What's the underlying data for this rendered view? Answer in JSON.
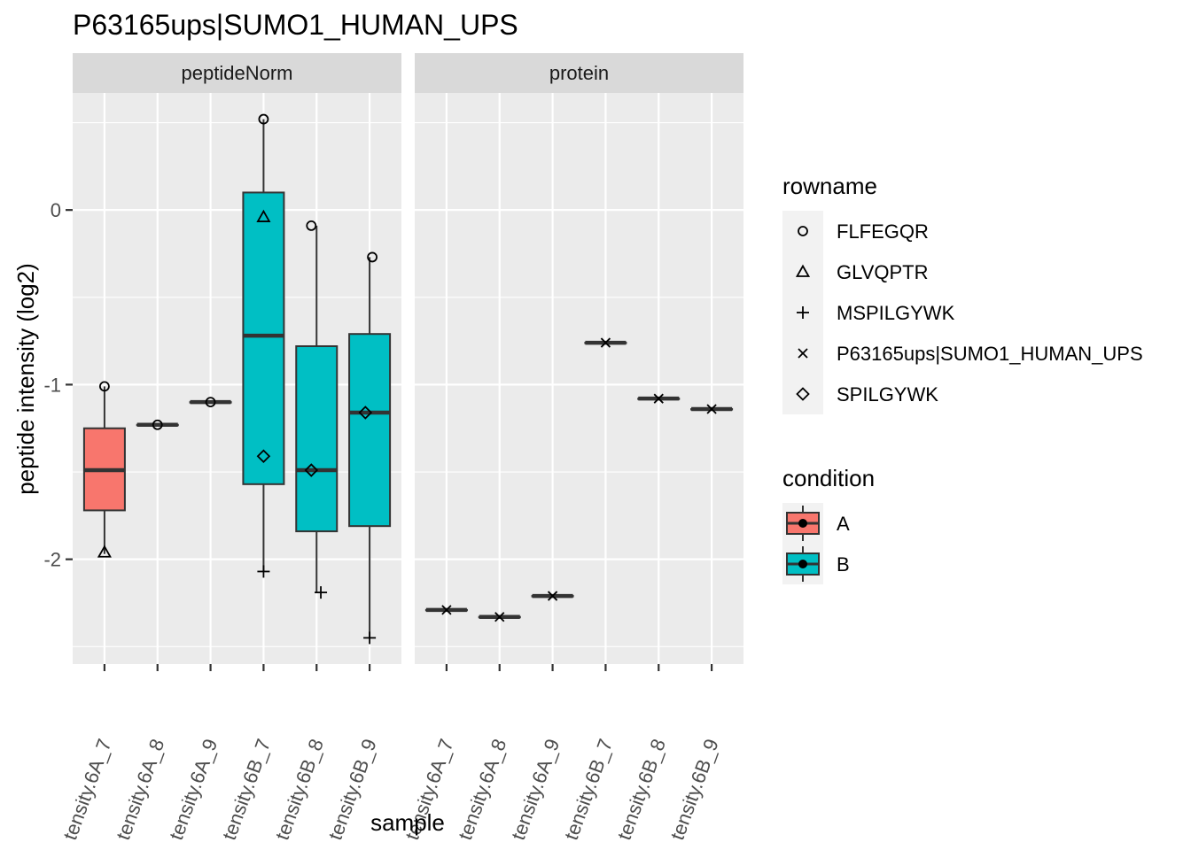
{
  "chart_data": {
    "type": "box",
    "title": "P63165ups|SUMO1_HUMAN_UPS",
    "xlabel": "sample",
    "ylabel": "peptide intensity (log2)",
    "ylim": [
      -2.6,
      0.67
    ],
    "yticks": [
      0,
      -1,
      -2
    ],
    "ytick_labels": [
      "0",
      "-1",
      "-2"
    ],
    "categories": [
      "tensity.6A_7",
      "tensity.6A_8",
      "tensity.6A_9",
      "tensity.6B_7",
      "tensity.6B_8",
      "tensity.6B_9"
    ],
    "grid": true,
    "colors": {
      "A": "#f8766d",
      "B": "#00bfc4"
    },
    "panels": [
      {
        "name": "peptideNorm",
        "boxes": [
          {
            "sample": "tensity.6A_7",
            "condition": "A",
            "min": -1.97,
            "q1": -1.72,
            "median": -1.49,
            "q3": -1.25,
            "max": -1.01
          },
          {
            "sample": "tensity.6A_8",
            "condition": "A",
            "min": -1.23,
            "q1": -1.23,
            "median": -1.23,
            "q3": -1.23,
            "max": -1.23
          },
          {
            "sample": "tensity.6A_9",
            "condition": "A",
            "min": -1.1,
            "q1": -1.1,
            "median": -1.1,
            "q3": -1.1,
            "max": -1.1
          },
          {
            "sample": "tensity.6B_7",
            "condition": "B",
            "min": -2.07,
            "q1": -1.57,
            "median": -0.72,
            "q3": 0.1,
            "max": 0.52
          },
          {
            "sample": "tensity.6B_8",
            "condition": "B",
            "min": -2.19,
            "q1": -1.84,
            "median": -1.49,
            "q3": -0.78,
            "max": -0.09
          },
          {
            "sample": "tensity.6B_9",
            "condition": "B",
            "min": -2.45,
            "q1": -1.81,
            "median": -1.16,
            "q3": -0.71,
            "max": -0.27
          }
        ],
        "points": [
          {
            "sample": "tensity.6A_7",
            "y": -1.01,
            "rowname": "FLFEGQR"
          },
          {
            "sample": "tensity.6A_7",
            "y": -1.96,
            "rowname": "GLVQPTR"
          },
          {
            "sample": "tensity.6A_8",
            "y": -1.23,
            "rowname": "FLFEGQR"
          },
          {
            "sample": "tensity.6A_9",
            "y": -1.1,
            "rowname": "FLFEGQR"
          },
          {
            "sample": "tensity.6B_7",
            "y": 0.52,
            "rowname": "FLFEGQR"
          },
          {
            "sample": "tensity.6B_7",
            "y": -0.04,
            "rowname": "GLVQPTR"
          },
          {
            "sample": "tensity.6B_7",
            "y": -1.41,
            "rowname": "SPILGYWK"
          },
          {
            "sample": "tensity.6B_7",
            "y": -2.07,
            "rowname": "MSPILGYWK",
            "dx": 0
          },
          {
            "sample": "tensity.6B_8",
            "y": -0.09,
            "rowname": "FLFEGQR",
            "dx": -0.1
          },
          {
            "sample": "tensity.6B_8",
            "y": -1.49,
            "rowname": "SPILGYWK",
            "dx": -0.1
          },
          {
            "sample": "tensity.6B_8",
            "y": -2.19,
            "rowname": "MSPILGYWK",
            "dx": 0.08
          },
          {
            "sample": "tensity.6B_9",
            "y": -0.27,
            "rowname": "FLFEGQR",
            "dx": 0.05
          },
          {
            "sample": "tensity.6B_9",
            "y": -1.16,
            "rowname": "SPILGYWK",
            "dx": -0.08
          },
          {
            "sample": "tensity.6B_9",
            "y": -2.45,
            "rowname": "MSPILGYWK"
          }
        ]
      },
      {
        "name": "protein",
        "boxes": [
          {
            "sample": "tensity.6A_7",
            "condition": "A",
            "min": -2.29,
            "q1": -2.29,
            "median": -2.29,
            "q3": -2.29,
            "max": -2.29
          },
          {
            "sample": "tensity.6A_8",
            "condition": "A",
            "min": -2.33,
            "q1": -2.33,
            "median": -2.33,
            "q3": -2.33,
            "max": -2.33
          },
          {
            "sample": "tensity.6A_9",
            "condition": "A",
            "min": -2.21,
            "q1": -2.21,
            "median": -2.21,
            "q3": -2.21,
            "max": -2.21
          },
          {
            "sample": "tensity.6B_7",
            "condition": "B",
            "min": -0.76,
            "q1": -0.76,
            "median": -0.76,
            "q3": -0.76,
            "max": -0.76
          },
          {
            "sample": "tensity.6B_8",
            "condition": "B",
            "min": -1.08,
            "q1": -1.08,
            "median": -1.08,
            "q3": -1.08,
            "max": -1.08
          },
          {
            "sample": "tensity.6B_9",
            "condition": "B",
            "min": -1.14,
            "q1": -1.14,
            "median": -1.14,
            "q3": -1.14,
            "max": -1.14
          }
        ],
        "points": [
          {
            "sample": "tensity.6A_7",
            "y": -2.29,
            "rowname": "P63165ups|SUMO1_HUMAN_UPS"
          },
          {
            "sample": "tensity.6A_8",
            "y": -2.33,
            "rowname": "P63165ups|SUMO1_HUMAN_UPS"
          },
          {
            "sample": "tensity.6A_9",
            "y": -2.21,
            "rowname": "P63165ups|SUMO1_HUMAN_UPS"
          },
          {
            "sample": "tensity.6B_7",
            "y": -0.76,
            "rowname": "P63165ups|SUMO1_HUMAN_UPS"
          },
          {
            "sample": "tensity.6B_8",
            "y": -1.08,
            "rowname": "P63165ups|SUMO1_HUMAN_UPS"
          },
          {
            "sample": "tensity.6B_9",
            "y": -1.14,
            "rowname": "P63165ups|SUMO1_HUMAN_UPS"
          }
        ]
      }
    ],
    "legends": [
      {
        "title": "rowname",
        "entries": [
          {
            "label": "FLFEGQR",
            "shape": "circle"
          },
          {
            "label": "GLVQPTR",
            "shape": "triangle"
          },
          {
            "label": "MSPILGYWK",
            "shape": "plus"
          },
          {
            "label": "P63165ups|SUMO1_HUMAN_UPS",
            "shape": "cross"
          },
          {
            "label": "SPILGYWK",
            "shape": "diamond"
          }
        ]
      },
      {
        "title": "condition",
        "entries": [
          {
            "label": "A",
            "color": "#f8766d"
          },
          {
            "label": "B",
            "color": "#00bfc4"
          }
        ]
      }
    ]
  }
}
